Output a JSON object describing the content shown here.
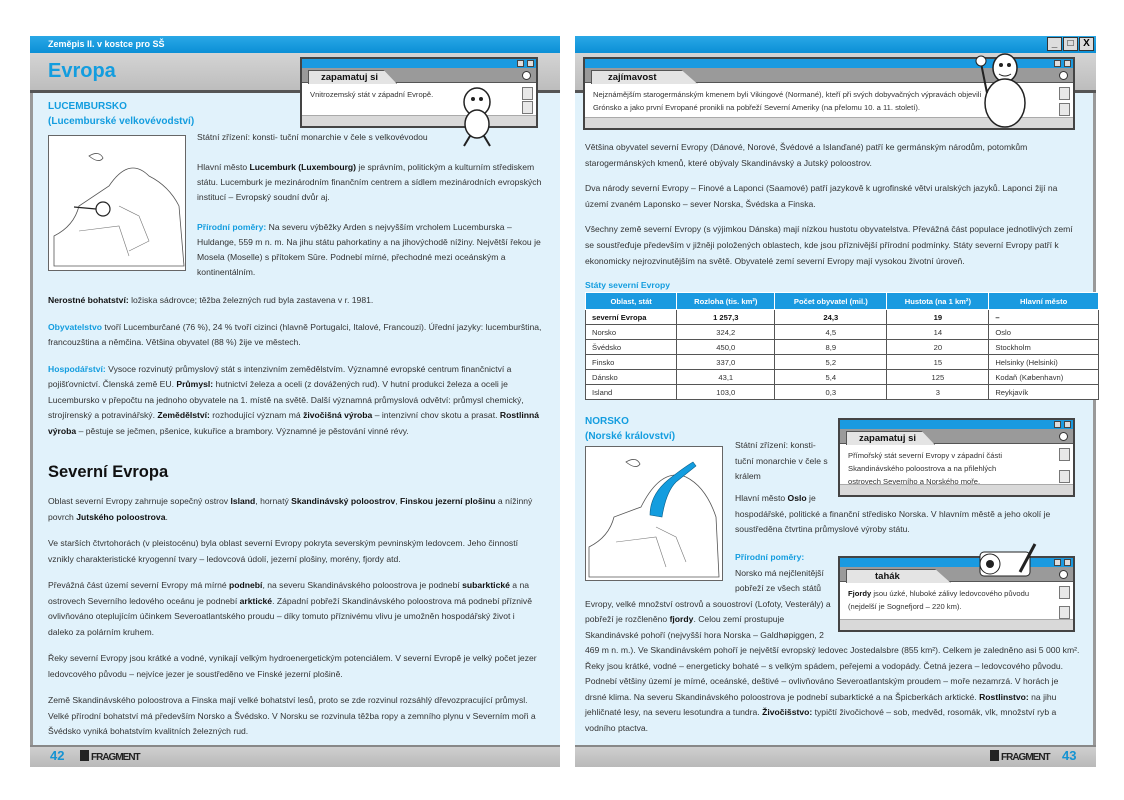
{
  "header": {
    "book_title": "Zeměpis II. v kostce pro SŠ",
    "section_title": "Evropa",
    "window_controls": [
      "_",
      "□",
      "X"
    ]
  },
  "left": {
    "lux_heading": "LUCEMBURSKO",
    "lux_subheading": "(Lucemburské velkovévodství)",
    "remember_box": {
      "title": "zapamatuj si",
      "text": "Vnitrozemský stát v západní Evropě."
    },
    "lux_side": [
      [
        {
          "t": "Státní zřízení: konsti- tuční monarchie v čele s velkovévodou"
        }
      ],
      [
        {
          "t": "Hlavní město "
        },
        {
          "t": "Lucemburk (Luxembourg)",
          "s": "b"
        },
        {
          "t": " je správním, politickým a kulturním středis­kem státu. Lucemburk je mezinárodním finančním centrem a sídlem mezinárodních evropských institucí – Evropský soudní dvůr aj."
        }
      ],
      [
        {
          "t": "Přírodní poměry:",
          "s": "c"
        },
        {
          "t": " Na severu výběžky Arden s nejvyšším vrcholem Lucemburska – Huldange, 559 m n. m. Na jihu státu pahorkatiny a na jihovýchodě nížiny. Největší řekou je Mosela (Moselle) s přítokem Sûre. Podnebí mírné, přechodné mezi oceán­ským a kontinentálním."
        }
      ]
    ],
    "lux_full": [
      [
        {
          "t": "Nerostné bohatství:",
          "s": "b"
        },
        {
          "t": " ložiska sádrovce; těžba železných rud byla zastavena v r. 1981."
        }
      ],
      [
        {
          "t": "Obyvatelstvo",
          "s": "c"
        },
        {
          "t": " tvoří Lucemburčané (76 %), 24 % tvoří cizinci (hlavně Portugalci, Italové, Francouzi). Úřední jazyky: lucem­burština, francouzština a němčina. Většina obyvatel (88 %) žije ve městech."
        }
      ],
      [
        {
          "t": "Hospodářství:",
          "s": "c"
        },
        {
          "t": " Vysoce rozvinutý průmyslový stát s intenzivním zemědělstvím. Významné evropské centrum finan­čnictví a pojišťovnictví. Členská země EU. "
        },
        {
          "t": "Průmysl:",
          "s": "b"
        },
        {
          "t": " hutnictví železa a oceli (z dovážených rud). V hutní produkci železa a oceli je Lucembursko v přepočtu na jednoho obyvatele na 1. místě na světě. Další významná průmyslová odvětví: průmysl chemický, strojírenský a potravinářský. "
        },
        {
          "t": "Zemědělství:",
          "s": "b"
        },
        {
          "t": " rozhodující význam má "
        },
        {
          "t": "živočišná výroba",
          "s": "b"
        },
        {
          "t": " – intenzivní chov skotu a prasat. "
        },
        {
          "t": "Rostlinná výroba",
          "s": "b"
        },
        {
          "t": " – pěstuje se ječmen, pšenice, kukuřice a brambory. Významné je pěstování vinné révy."
        }
      ]
    ],
    "north_heading": "Severní Evropa",
    "north_paragraphs": [
      [
        {
          "t": "Oblast severní Evropy zahrnuje sopečný ostrov "
        },
        {
          "t": "Island",
          "s": "b"
        },
        {
          "t": ", hornatý "
        },
        {
          "t": "Skandinávský poloostrov",
          "s": "b"
        },
        {
          "t": ", "
        },
        {
          "t": "Finskou jezerní plošinu",
          "s": "b"
        },
        {
          "t": " a nížinný povrch "
        },
        {
          "t": "Jutského poloostrova",
          "s": "b"
        },
        {
          "t": "."
        }
      ],
      [
        {
          "t": "Ve starších čtvrtohorách (v pleistocénu) byla oblast severní Evropy pokryta severským pevninským ledovcem. Jeho činností vznikly charakteristické kryogenní tvary – ledovcová údolí, jezerní plošiny, morény, fjordy atd."
        }
      ],
      [
        {
          "t": "Převážná část území severní Evropy má mírné "
        },
        {
          "t": "podnebí",
          "s": "b"
        },
        {
          "t": ", na severu Skandinávského poloostrova je podnebí "
        },
        {
          "t": "subarktické",
          "s": "b"
        },
        {
          "t": " a na ostrovech Severního ledového oceánu je podnebí "
        },
        {
          "t": "arktické",
          "s": "b"
        },
        {
          "t": ". Západní pobřeží Skandinávského poloostrova má podne­bí příznivě ovlivňováno oteplujícím účinkem Severoatlantského proudu – díky tomuto příznivému vlivu je umožněn hospodářský život i daleko za polárním kruhem."
        }
      ],
      [
        {
          "t": "Řeky severní Evropy jsou krátké a vodné, vynikají velkým hydroenergetickým potenciálem. V severní Evropě je velký počet jezer ledovcového původu – nejvíce jezer je soustředěno ve Finské jezerní plošině."
        }
      ],
      [
        {
          "t": "Země Skandinávského poloostrova a Finska mají velké bohatství lesů, proto se zde rozvinul rozsáhlý dřevozpracující průmysl. Velké přírodní bohatství má především Norsko a Švédsko. V Norsku se rozvinula těžba ropy a zemního plynu v Severním moři a Švédsko vyniká bohatstvím kvalitních železných rud."
        }
      ]
    ],
    "page_number": "42",
    "logo": "FRAGMENT"
  },
  "right": {
    "fact_box": {
      "title": "zajímavost",
      "text": "Nejznámějším starogermánským kmenem byli Vikingové (Normané), kteří při svých dobyvačných výpravách objevili Grónsko a jako první Evropané pronikli na pobřeží Severní Ameriky (na přelomu 10. a 11. století)."
    },
    "paragraphs": [
      [
        {
          "t": "Většina obyvatel severní Evropy (Dánové, Norové, Švédové a Islanďané) patří ke germánským národům, potomkům starogermánských kmenů, které obývaly Skandinávský a Jutský poloostrov."
        }
      ],
      [
        {
          "t": "Dva národy severní Evropy – Finové a Laponci (Saamové) patří jazykově k ugrofinské větvi uralských jazyků. Laponci žijí na území zvaném Laponsko – sever Norska, Švédska a Finska."
        }
      ],
      [
        {
          "t": "Všechny země severní Evropy (s výjimkou Dánska) mají nízkou hustotu obyvatelstva. Převážná část populace jednotlivých zemí se soustřeďuje především v jižněji položených oblastech, kde jsou příznivější přírodní podmínky. Státy severní Evropy patří k ekonomicky nejrozvinutějším na světě. Obyvatelé zemí severní Evropy mají vysokou životní úroveň."
        }
      ]
    ],
    "table": {
      "caption": "Státy severní Evropy",
      "columns": [
        "Oblast, stát",
        "Rozloha (tis. km²)",
        "Počet obyvatel (mil.)",
        "Hustota (na 1 km²)",
        "Hlavní město"
      ],
      "rows": [
        [
          "severní Evropa",
          "1 257,3",
          "24,3",
          "19",
          "–"
        ],
        [
          "Norsko",
          "324,2",
          "4,5",
          "14",
          "Oslo"
        ],
        [
          "Švédsko",
          "450,0",
          "8,9",
          "20",
          "Stockholm"
        ],
        [
          "Finsko",
          "337,0",
          "5,2",
          "15",
          "Helsinky (Helsinki)"
        ],
        [
          "Dánsko",
          "43,1",
          "5,4",
          "125",
          "Kodaň (København)"
        ],
        [
          "Island",
          "103,0",
          "0,3",
          "3",
          "Reykjavík"
        ]
      ]
    },
    "norway_heading": "NORSKO",
    "norway_subheading": "(Norské království)",
    "remember_box": {
      "title": "zapamatuj si",
      "text": "Přímořský stát severní Evropy v západní části Skandinávského poloostrova a na přilehlých ostrovech Severního a Norského moře."
    },
    "cheat_box": {
      "title": "tahák",
      "bold": "Fjordy",
      "text": " jsou úzké, hluboké zálivy ledovcového původu (nejdelší je Sognefjord – 220 km)."
    },
    "norway_side1": [
      {
        "t": "Státní zřízení: konsti- tuční monarchie v čele s králem"
      }
    ],
    "norway_capital": [
      {
        "t": "Hlavní město "
      },
      {
        "t": "Oslo",
        "s": "b"
      },
      {
        "t": " je hospodářské, politické a finanční středisko Norska. V hlavním městě a jeho okolí je soustředěna čtvrtina průmyslové výroby státu."
      }
    ],
    "norway_nature": [
      {
        "t": "Přírodní poměry:",
        "s": "c"
      },
      {
        "t": " Norsko má nejčleni­tější pobřeží ze všech států Evropy, velké množství ostrovů a souostroví (Lofoty, Vesterály) a pobřeží je rozčleněno "
      },
      {
        "t": "fjordy",
        "s": "b"
      },
      {
        "t": ". Celou zemí prostupuje Skandinávské pohoří (nejvyšší hora Norska – Galdhøpiggen, 2 469 m n. m.). Ve Skandinávském pohoří je největší evropský ledovec Jostedalsbre (855 km²). Celkem je zaledněno asi 5 000 km². Řeky jsou krátké, vodné – energetic­ky bohaté – s velkým spádem, peřejemi a vodopády. Četná jezera – ledovcového původu. Podnebí většiny území je mírné, oceánské, deštivé – ovlivňováno Severoatlantským proudem – moře nezamrzá. V horách je drsné klima. Na severu Skandi­návského poloostrova je podnebí subarktické a na Špicberkách arktické. "
      },
      {
        "t": "Rostlinstvo:",
        "s": "b"
      },
      {
        "t": " na jihu jehličnaté lesy, na severu lesotundra a tundra. "
      },
      {
        "t": "Živočišstvo:",
        "s": "b"
      },
      {
        "t": " typičtí živočichové – sob, medvěd, rosomák, vlk, množství ryb a vodního ptactva."
      }
    ],
    "page_number": "43",
    "logo": "FRAGMENT"
  },
  "colors": {
    "accent": "#139ddf",
    "page_bg": "#e1f2fb",
    "title_bar": "#0b8fd6"
  }
}
